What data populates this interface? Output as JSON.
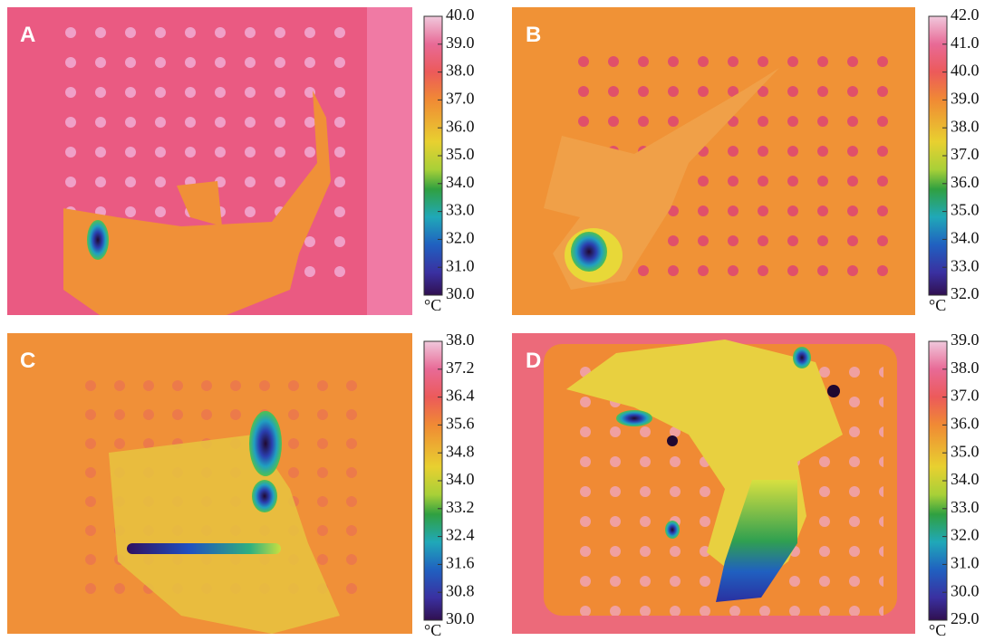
{
  "panels": [
    {
      "label": "A",
      "colorbar": {
        "ticks": [
          "40.0",
          "39.0",
          "38.0",
          "37.0",
          "36.0",
          "35.0",
          "34.0",
          "33.0",
          "32.0",
          "31.0",
          "30.0"
        ],
        "unit": "°C"
      }
    },
    {
      "label": "B",
      "colorbar": {
        "ticks": [
          "42.0",
          "41.0",
          "40.0",
          "39.0",
          "38.0",
          "37.0",
          "36.0",
          "35.0",
          "34.0",
          "33.0",
          "32.0"
        ],
        "unit": "°C"
      }
    },
    {
      "label": "C",
      "colorbar": {
        "ticks": [
          "38.0",
          "37.2",
          "36.4",
          "35.6",
          "34.8",
          "34.0",
          "33.2",
          "32.4",
          "31.6",
          "30.8",
          "30.0"
        ],
        "unit": "°C"
      }
    },
    {
      "label": "D",
      "colorbar": {
        "ticks": [
          "39.0",
          "38.0",
          "37.0",
          "36.0",
          "35.0",
          "34.0",
          "33.0",
          "32.0",
          "31.0",
          "30.0",
          "29.0"
        ],
        "unit": "°C"
      }
    }
  ]
}
